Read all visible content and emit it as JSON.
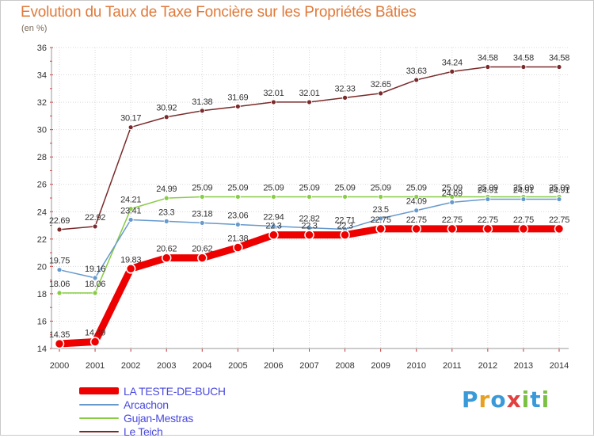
{
  "header": {
    "title": "Evolution du Taux de Taxe Foncière sur les Propriétés Bâties",
    "unit": "(en %)"
  },
  "logo": {
    "text": "Proxiti",
    "letters": [
      {
        "ch": "P",
        "color": "#3a9ad9"
      },
      {
        "ch": "r",
        "color": "#e8a020"
      },
      {
        "ch": "o",
        "color": "#3a9ad9"
      },
      {
        "ch": "x",
        "color": "#e04040"
      },
      {
        "ch": "i",
        "color": "#7bc043"
      },
      {
        "ch": "t",
        "color": "#3a9ad9"
      },
      {
        "ch": "i",
        "color": "#7bc043"
      }
    ]
  },
  "chart_data": {
    "type": "line",
    "title": "Evolution du Taux de Taxe Foncière sur les Propriétés Bâties",
    "ylabel": "(en %)",
    "xlabel": "",
    "x": [
      "2000",
      "2001",
      "2002",
      "2003",
      "2004",
      "2005",
      "2006",
      "2007",
      "2008",
      "2009",
      "2010",
      "2011",
      "2012",
      "2013",
      "2014"
    ],
    "ylim": [
      14,
      36
    ],
    "yticks": [
      "14",
      "16",
      "18",
      "20",
      "22",
      "24",
      "26",
      "28",
      "30",
      "32",
      "34",
      "36"
    ],
    "grid": true,
    "legend": "bottom-left",
    "series": [
      {
        "name": "LA TESTE-DE-BUCH",
        "color": "#ee0000",
        "width": 9,
        "values": [
          14.35,
          14.49,
          19.83,
          20.62,
          20.62,
          21.38,
          22.3,
          22.3,
          22.3,
          22.75,
          22.75,
          22.75,
          22.75,
          22.75,
          22.75
        ],
        "labels": [
          "14.35",
          "14.49",
          "19.83",
          "20.62",
          "20.62",
          "21.38",
          "22.3",
          "22.3",
          "22.3",
          "22.75",
          "22.75",
          "22.75",
          "22.75",
          "22.75",
          "22.75"
        ]
      },
      {
        "name": "Arcachon",
        "color": "#6699cc",
        "width": 1.5,
        "values": [
          19.75,
          19.16,
          23.41,
          23.3,
          23.18,
          23.06,
          22.94,
          22.82,
          22.71,
          23.5,
          24.09,
          24.69,
          24.91,
          24.91,
          24.91
        ],
        "labels": [
          "19.75",
          "19.16",
          "23.41",
          "23.3",
          "23.18",
          "23.06",
          "22.94",
          "22.82",
          "22.71",
          "23.5",
          "24.09",
          "24.69",
          "24.91",
          "24.91",
          "24.91"
        ]
      },
      {
        "name": "Gujan-Mestras",
        "color": "#88cc44",
        "width": 1.5,
        "values": [
          18.06,
          18.06,
          24.21,
          24.99,
          25.09,
          25.09,
          25.09,
          25.09,
          25.09,
          25.09,
          25.09,
          25.09,
          25.09,
          25.09,
          25.09
        ],
        "labels": [
          "18.06",
          "18.06",
          "24.21",
          "24.99",
          "25.09",
          "25.09",
          "25.09",
          "25.09",
          "25.09",
          "25.09",
          "25.09",
          "25.09",
          "25.09",
          "25.09",
          "25.09"
        ]
      },
      {
        "name": "Le Teich",
        "color": "#7a2a2a",
        "width": 1.5,
        "values": [
          22.69,
          22.92,
          30.17,
          30.92,
          31.38,
          31.69,
          32.01,
          32.01,
          32.33,
          32.65,
          33.63,
          34.24,
          34.58,
          34.58,
          34.58
        ],
        "labels": [
          "22.69",
          "22.92",
          "30.17",
          "30.92",
          "31.38",
          "31.69",
          "32.01",
          "32.01",
          "32.33",
          "32.65",
          "33.63",
          "34.24",
          "34.58",
          "34.58",
          "34.58"
        ]
      }
    ]
  }
}
